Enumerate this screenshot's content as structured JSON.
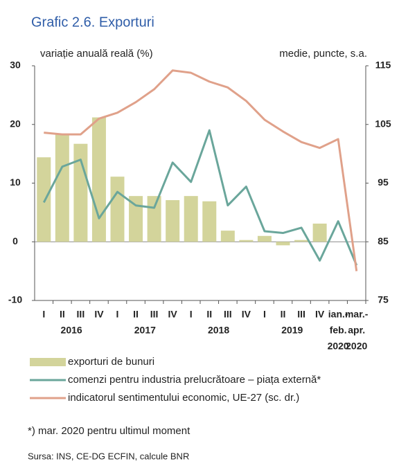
{
  "chart_data": {
    "type": "bar-line",
    "title": "Grafic 2.6. Exporturi",
    "y_label": "variație anuală reală (%)",
    "y2_label": "medie, puncte, s.a.",
    "categories": [
      "I",
      "II",
      "III",
      "IV",
      "I",
      "II",
      "III",
      "IV",
      "I",
      "II",
      "III",
      "IV",
      "I",
      "II",
      "III",
      "IV",
      [
        "ian.-",
        "feb."
      ],
      [
        "mar.-",
        "apr."
      ]
    ],
    "years": [
      {
        "label": "2016",
        "span": 4
      },
      {
        "label": "2017",
        "span": 4
      },
      {
        "label": "2018",
        "span": 4
      },
      {
        "label": "2019",
        "span": 4
      },
      {
        "label": "2020",
        "span": 1
      },
      {
        "label": "2020",
        "span": 1
      }
    ],
    "series": [
      {
        "name": "exporturi de bunuri",
        "kind": "bar",
        "color": "#d3d49b",
        "values": [
          14.4,
          18.3,
          16.7,
          21.2,
          11.1,
          7.8,
          7.8,
          7.1,
          7.8,
          6.9,
          1.9,
          0.3,
          1.0,
          -0.6,
          0.3,
          3.1,
          null,
          null
        ]
      },
      {
        "name": "comenzi pentru industria prelucrătoare – piața externă*",
        "kind": "line",
        "color": "#6aa69b",
        "values": [
          6.7,
          12.8,
          14.0,
          4.0,
          8.5,
          6.2,
          5.8,
          13.5,
          10.2,
          19.0,
          6.2,
          9.4,
          1.8,
          1.5,
          2.4,
          -3.2,
          3.5,
          -4.0
        ]
      },
      {
        "name": "indicatorul sentimentului economic, UE-27 (sc. dr.)",
        "kind": "line",
        "axis": "y2",
        "color": "#e0a18a",
        "values": [
          103.6,
          103.3,
          103.3,
          106.0,
          107.0,
          108.8,
          111.0,
          114.2,
          113.8,
          112.3,
          111.3,
          109.0,
          105.8,
          103.8,
          102.0,
          101.0,
          102.5,
          80.0
        ]
      }
    ],
    "ylim": [
      -10,
      30
    ],
    "yticks": [
      -10,
      0,
      10,
      20,
      30
    ],
    "y2lim": [
      75,
      115
    ],
    "y2ticks": [
      75,
      85,
      95,
      105,
      115
    ],
    "footnote": "*) mar. 2020 pentru ultimul moment",
    "source": "Sursa: INS, CE-DG ECFIN, calcule BNR"
  }
}
